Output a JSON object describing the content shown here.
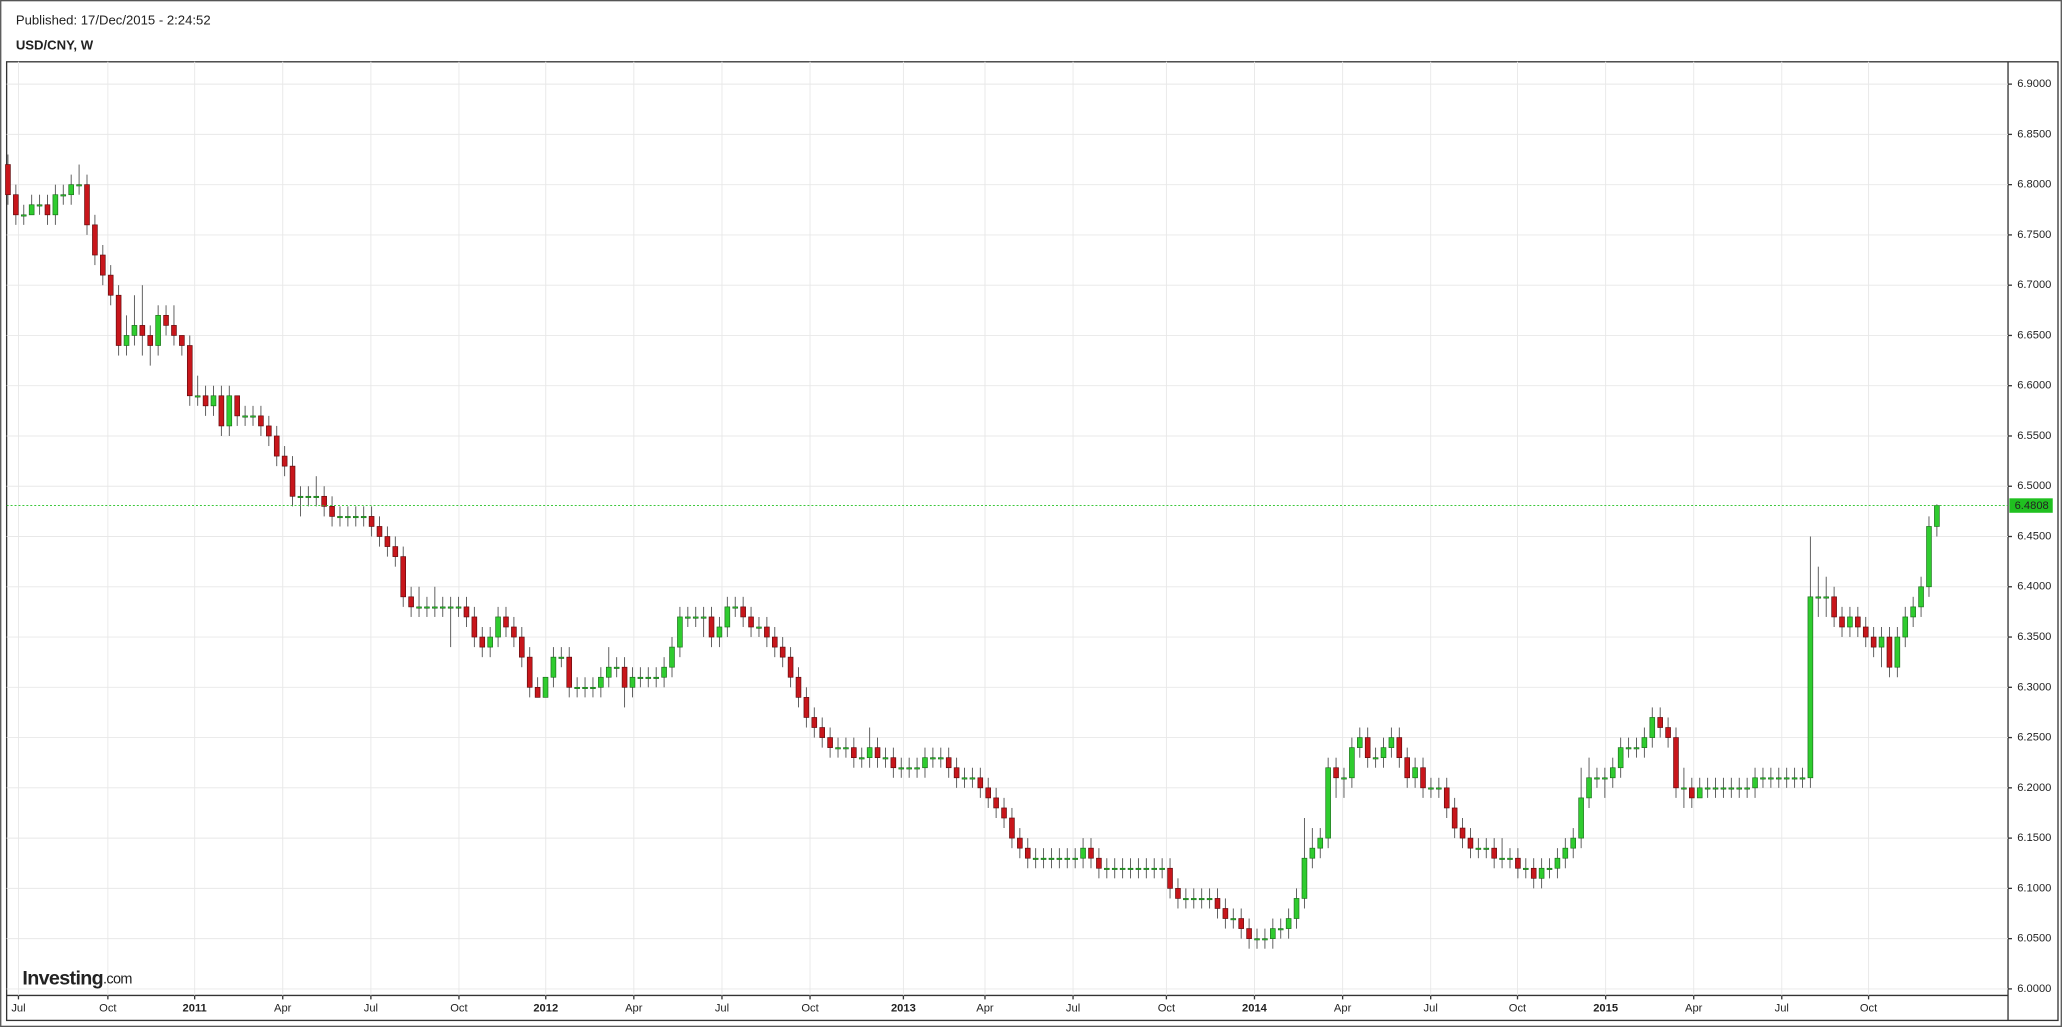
{
  "chart_data": {
    "type": "candlestick",
    "title": "USD/CNY, W",
    "subtitle": "Published: 17/Dec/2015 - 2:24:52",
    "watermark": {
      "text": "Investing",
      "suffix": ".com"
    },
    "up_color": "#2fcc2f",
    "down_color": "#c8161b",
    "last_color": "#20c020",
    "grid": true,
    "ylim": [
      5.9935,
      6.9222
    ],
    "yticks": [
      {
        "value": 6.0,
        "label": "6.0000"
      },
      {
        "value": 6.05,
        "label": "6.0500"
      },
      {
        "value": 6.1,
        "label": "6.1000"
      },
      {
        "value": 6.15,
        "label": "6.1500"
      },
      {
        "value": 6.2,
        "label": "6.2000"
      },
      {
        "value": 6.25,
        "label": "6.2500"
      },
      {
        "value": 6.3,
        "label": "6.3000"
      },
      {
        "value": 6.35,
        "label": "6.3500"
      },
      {
        "value": 6.4,
        "label": "6.4000"
      },
      {
        "value": 6.45,
        "label": "6.4500"
      },
      {
        "value": 6.5,
        "label": "6.5000"
      },
      {
        "value": 6.55,
        "label": "6.5500"
      },
      {
        "value": 6.6,
        "label": "6.6000"
      },
      {
        "value": 6.65,
        "label": "6.6500"
      },
      {
        "value": 6.7,
        "label": "6.7000"
      },
      {
        "value": 6.75,
        "label": "6.7500"
      },
      {
        "value": 6.8,
        "label": "6.8000"
      },
      {
        "value": 6.85,
        "label": "6.8500"
      },
      {
        "value": 6.9,
        "label": "6.9000"
      }
    ],
    "xlim": [
      -0.166,
      253.0
    ],
    "xticks": [
      {
        "value": 1.33,
        "label": "Jul"
      },
      {
        "value": 12.64,
        "label": "Oct"
      },
      {
        "value": 23.62,
        "label": "2011"
      },
      {
        "value": 34.76,
        "label": "Apr"
      },
      {
        "value": 45.91,
        "label": "Jul"
      },
      {
        "value": 57.05,
        "label": "Oct"
      },
      {
        "value": 68.03,
        "label": "2012"
      },
      {
        "value": 79.17,
        "label": "Apr"
      },
      {
        "value": 90.32,
        "label": "Jul"
      },
      {
        "value": 101.46,
        "label": "Oct"
      },
      {
        "value": 113.27,
        "label": "2013"
      },
      {
        "value": 123.59,
        "label": "Apr"
      },
      {
        "value": 134.73,
        "label": "Jul"
      },
      {
        "value": 146.54,
        "label": "Oct"
      },
      {
        "value": 157.68,
        "label": "2014"
      },
      {
        "value": 168.83,
        "label": "Apr"
      },
      {
        "value": 179.97,
        "label": "Jul"
      },
      {
        "value": 190.95,
        "label": "Oct"
      },
      {
        "value": 202.1,
        "label": "2015"
      },
      {
        "value": 213.24,
        "label": "Apr"
      },
      {
        "value": 224.38,
        "label": "Jul"
      },
      {
        "value": 235.36,
        "label": "Oct"
      }
    ],
    "open": [
      6.82,
      6.79,
      6.77,
      6.77,
      6.78,
      6.78,
      6.77,
      6.79,
      6.79,
      6.8,
      6.8,
      6.76,
      6.73,
      6.71,
      6.69,
      6.64,
      6.65,
      6.66,
      6.65,
      6.64,
      6.67,
      6.66,
      6.65,
      6.64,
      6.59,
      6.59,
      6.58,
      6.59,
      6.56,
      6.59,
      6.57,
      6.57,
      6.57,
      6.56,
      6.55,
      6.53,
      6.52,
      6.49,
      6.49,
      6.49,
      6.49,
      6.48,
      6.47,
      6.47,
      6.47,
      6.47,
      6.47,
      6.46,
      6.45,
      6.44,
      6.43,
      6.39,
      6.38,
      6.38,
      6.38,
      6.38,
      6.38,
      6.38,
      6.38,
      6.37,
      6.35,
      6.34,
      6.35,
      6.37,
      6.36,
      6.35,
      6.33,
      6.3,
      6.29,
      6.31,
      6.33,
      6.33,
      6.3,
      6.3,
      6.3,
      6.3,
      6.31,
      6.32,
      6.32,
      6.3,
      6.31,
      6.31,
      6.31,
      6.31,
      6.32,
      6.34,
      6.37,
      6.37,
      6.37,
      6.37,
      6.35,
      6.36,
      6.38,
      6.38,
      6.37,
      6.36,
      6.36,
      6.35,
      6.34,
      6.33,
      6.31,
      6.29,
      6.27,
      6.26,
      6.25,
      6.24,
      6.24,
      6.24,
      6.23,
      6.23,
      6.24,
      6.23,
      6.23,
      6.22,
      6.22,
      6.22,
      6.22,
      6.23,
      6.23,
      6.23,
      6.22,
      6.21,
      6.21,
      6.21,
      6.2,
      6.19,
      6.18,
      6.17,
      6.15,
      6.14,
      6.13,
      6.13,
      6.13,
      6.13,
      6.13,
      6.13,
      6.13,
      6.14,
      6.13,
      6.12,
      6.12,
      6.12,
      6.12,
      6.12,
      6.12,
      6.12,
      6.12,
      6.12,
      6.1,
      6.09,
      6.09,
      6.09,
      6.09,
      6.09,
      6.08,
      6.07,
      6.07,
      6.06,
      6.05,
      6.05,
      6.05,
      6.06,
      6.06,
      6.07,
      6.09,
      6.13,
      6.14,
      6.15,
      6.22,
      6.21,
      6.21,
      6.24,
      6.25,
      6.23,
      6.23,
      6.24,
      6.25,
      6.23,
      6.21,
      6.22,
      6.2,
      6.2,
      6.2,
      6.18,
      6.16,
      6.15,
      6.14,
      6.14,
      6.14,
      6.13,
      6.13,
      6.13,
      6.12,
      6.12,
      6.11,
      6.12,
      6.12,
      6.13,
      6.14,
      6.15,
      6.19,
      6.21,
      6.21,
      6.21,
      6.22,
      6.24,
      6.24,
      6.24,
      6.25,
      6.27,
      6.26,
      6.25,
      6.2,
      6.2,
      6.19,
      6.2,
      6.2,
      6.2,
      6.2,
      6.2,
      6.2,
      6.2,
      6.21,
      6.21,
      6.21,
      6.21,
      6.21,
      6.21,
      6.21,
      6.39,
      6.39,
      6.39,
      6.37,
      6.36,
      6.37,
      6.36,
      6.35,
      6.34,
      6.35,
      6.32,
      6.35,
      6.37,
      6.38,
      6.4,
      6.46
    ],
    "high": [
      6.83,
      6.8,
      6.78,
      6.79,
      6.79,
      6.79,
      6.8,
      6.8,
      6.81,
      6.82,
      6.81,
      6.77,
      6.74,
      6.72,
      6.7,
      6.67,
      6.69,
      6.7,
      6.66,
      6.68,
      6.68,
      6.68,
      6.65,
      6.65,
      6.61,
      6.6,
      6.6,
      6.6,
      6.6,
      6.59,
      6.58,
      6.58,
      6.58,
      6.57,
      6.56,
      6.54,
      6.53,
      6.5,
      6.5,
      6.51,
      6.5,
      6.49,
      6.48,
      6.48,
      6.48,
      6.48,
      6.48,
      6.47,
      6.46,
      6.45,
      6.44,
      6.4,
      6.4,
      6.39,
      6.4,
      6.39,
      6.39,
      6.39,
      6.39,
      6.38,
      6.36,
      6.36,
      6.38,
      6.38,
      6.37,
      6.36,
      6.34,
      6.31,
      6.31,
      6.34,
      6.34,
      6.34,
      6.31,
      6.31,
      6.31,
      6.32,
      6.34,
      6.33,
      6.33,
      6.32,
      6.32,
      6.32,
      6.32,
      6.33,
      6.35,
      6.38,
      6.38,
      6.38,
      6.38,
      6.38,
      6.37,
      6.39,
      6.39,
      6.39,
      6.38,
      6.37,
      6.37,
      6.36,
      6.35,
      6.34,
      6.32,
      6.3,
      6.28,
      6.27,
      6.26,
      6.25,
      6.25,
      6.25,
      6.24,
      6.26,
      6.25,
      6.24,
      6.24,
      6.23,
      6.23,
      6.23,
      6.24,
      6.24,
      6.24,
      6.24,
      6.23,
      6.22,
      6.22,
      6.22,
      6.21,
      6.2,
      6.19,
      6.18,
      6.16,
      6.15,
      6.14,
      6.14,
      6.14,
      6.14,
      6.14,
      6.14,
      6.15,
      6.15,
      6.14,
      6.13,
      6.13,
      6.13,
      6.13,
      6.13,
      6.13,
      6.13,
      6.13,
      6.13,
      6.11,
      6.1,
      6.1,
      6.1,
      6.1,
      6.1,
      6.09,
      6.08,
      6.08,
      6.07,
      6.06,
      6.06,
      6.07,
      6.07,
      6.08,
      6.1,
      6.17,
      6.16,
      6.16,
      6.23,
      6.23,
      6.22,
      6.25,
      6.26,
      6.26,
      6.24,
      6.25,
      6.26,
      6.26,
      6.24,
      6.23,
      6.23,
      6.21,
      6.21,
      6.21,
      6.19,
      6.17,
      6.16,
      6.15,
      6.15,
      6.15,
      6.15,
      6.14,
      6.14,
      6.13,
      6.13,
      6.13,
      6.13,
      6.14,
      6.15,
      6.16,
      6.22,
      6.23,
      6.22,
      6.22,
      6.23,
      6.25,
      6.25,
      6.25,
      6.26,
      6.28,
      6.28,
      6.27,
      6.26,
      6.22,
      6.21,
      6.21,
      6.21,
      6.21,
      6.21,
      6.21,
      6.21,
      6.21,
      6.22,
      6.22,
      6.22,
      6.22,
      6.22,
      6.22,
      6.22,
      6.45,
      6.42,
      6.41,
      6.4,
      6.38,
      6.38,
      6.38,
      6.37,
      6.36,
      6.36,
      6.36,
      6.36,
      6.38,
      6.39,
      6.41,
      6.47,
      6.482
    ],
    "low": [
      6.78,
      6.76,
      6.76,
      6.77,
      6.77,
      6.76,
      6.76,
      6.78,
      6.78,
      6.79,
      6.75,
      6.72,
      6.7,
      6.68,
      6.63,
      6.63,
      6.64,
      6.63,
      6.62,
      6.63,
      6.65,
      6.64,
      6.63,
      6.58,
      6.58,
      6.57,
      6.57,
      6.55,
      6.55,
      6.56,
      6.56,
      6.56,
      6.55,
      6.54,
      6.52,
      6.51,
      6.48,
      6.47,
      6.48,
      6.48,
      6.47,
      6.46,
      6.46,
      6.46,
      6.46,
      6.46,
      6.45,
      6.44,
      6.43,
      6.42,
      6.38,
      6.37,
      6.37,
      6.37,
      6.37,
      6.37,
      6.34,
      6.37,
      6.36,
      6.34,
      6.33,
      6.33,
      6.34,
      6.35,
      6.34,
      6.32,
      6.29,
      6.29,
      6.29,
      6.3,
      6.32,
      6.29,
      6.29,
      6.29,
      6.29,
      6.29,
      6.3,
      6.31,
      6.28,
      6.29,
      6.3,
      6.3,
      6.3,
      6.3,
      6.31,
      6.33,
      6.36,
      6.36,
      6.35,
      6.34,
      6.34,
      6.35,
      6.37,
      6.36,
      6.35,
      6.35,
      6.34,
      6.33,
      6.32,
      6.3,
      6.28,
      6.26,
      6.25,
      6.24,
      6.23,
      6.23,
      6.23,
      6.22,
      6.22,
      6.22,
      6.22,
      6.22,
      6.21,
      6.21,
      6.21,
      6.21,
      6.21,
      6.22,
      6.22,
      6.21,
      6.2,
      6.2,
      6.2,
      6.19,
      6.18,
      6.17,
      6.16,
      6.14,
      6.13,
      6.12,
      6.12,
      6.12,
      6.12,
      6.12,
      6.12,
      6.12,
      6.12,
      6.12,
      6.11,
      6.11,
      6.11,
      6.11,
      6.11,
      6.11,
      6.11,
      6.11,
      6.11,
      6.09,
      6.08,
      6.08,
      6.08,
      6.08,
      6.08,
      6.07,
      6.06,
      6.06,
      6.05,
      6.04,
      6.04,
      6.04,
      6.04,
      6.05,
      6.05,
      6.06,
      6.08,
      6.12,
      6.13,
      6.14,
      6.19,
      6.19,
      6.2,
      6.23,
      6.22,
      6.22,
      6.22,
      6.23,
      6.22,
      6.2,
      6.2,
      6.19,
      6.19,
      6.19,
      6.17,
      6.15,
      6.14,
      6.13,
      6.13,
      6.13,
      6.12,
      6.12,
      6.12,
      6.11,
      6.11,
      6.1,
      6.1,
      6.11,
      6.11,
      6.12,
      6.13,
      6.14,
      6.18,
      6.2,
      6.19,
      6.2,
      6.21,
      6.23,
      6.23,
      6.23,
      6.24,
      6.25,
      6.24,
      6.19,
      6.18,
      6.18,
      6.19,
      6.19,
      6.19,
      6.19,
      6.19,
      6.19,
      6.19,
      6.19,
      6.2,
      6.2,
      6.2,
      6.2,
      6.2,
      6.2,
      6.2,
      6.37,
      6.37,
      6.36,
      6.35,
      6.35,
      6.35,
      6.34,
      6.33,
      6.32,
      6.31,
      6.31,
      6.34,
      6.36,
      6.37,
      6.39,
      6.45
    ],
    "close": [
      6.79,
      6.77,
      6.77,
      6.78,
      6.78,
      6.77,
      6.79,
      6.79,
      6.8,
      6.8,
      6.76,
      6.73,
      6.71,
      6.69,
      6.64,
      6.65,
      6.66,
      6.65,
      6.64,
      6.67,
      6.66,
      6.65,
      6.64,
      6.59,
      6.59,
      6.58,
      6.59,
      6.56,
      6.59,
      6.57,
      6.57,
      6.57,
      6.56,
      6.55,
      6.53,
      6.52,
      6.49,
      6.49,
      6.49,
      6.49,
      6.48,
      6.47,
      6.47,
      6.47,
      6.47,
      6.47,
      6.46,
      6.45,
      6.44,
      6.43,
      6.39,
      6.38,
      6.38,
      6.38,
      6.38,
      6.38,
      6.38,
      6.38,
      6.37,
      6.35,
      6.34,
      6.35,
      6.37,
      6.36,
      6.35,
      6.33,
      6.3,
      6.29,
      6.31,
      6.33,
      6.33,
      6.3,
      6.3,
      6.3,
      6.3,
      6.31,
      6.32,
      6.32,
      6.3,
      6.31,
      6.31,
      6.31,
      6.31,
      6.32,
      6.34,
      6.37,
      6.37,
      6.37,
      6.37,
      6.35,
      6.36,
      6.38,
      6.38,
      6.37,
      6.36,
      6.36,
      6.35,
      6.34,
      6.33,
      6.31,
      6.29,
      6.27,
      6.26,
      6.25,
      6.24,
      6.24,
      6.24,
      6.23,
      6.23,
      6.24,
      6.23,
      6.23,
      6.22,
      6.22,
      6.22,
      6.22,
      6.23,
      6.23,
      6.23,
      6.22,
      6.21,
      6.21,
      6.21,
      6.2,
      6.19,
      6.18,
      6.17,
      6.15,
      6.14,
      6.13,
      6.13,
      6.13,
      6.13,
      6.13,
      6.13,
      6.13,
      6.14,
      6.13,
      6.12,
      6.12,
      6.12,
      6.12,
      6.12,
      6.12,
      6.12,
      6.12,
      6.12,
      6.1,
      6.09,
      6.09,
      6.09,
      6.09,
      6.09,
      6.08,
      6.07,
      6.07,
      6.06,
      6.05,
      6.05,
      6.05,
      6.06,
      6.06,
      6.07,
      6.09,
      6.13,
      6.14,
      6.15,
      6.22,
      6.21,
      6.21,
      6.24,
      6.25,
      6.23,
      6.23,
      6.24,
      6.25,
      6.23,
      6.21,
      6.22,
      6.2,
      6.2,
      6.2,
      6.18,
      6.16,
      6.15,
      6.14,
      6.14,
      6.14,
      6.13,
      6.13,
      6.13,
      6.12,
      6.12,
      6.11,
      6.12,
      6.12,
      6.13,
      6.14,
      6.15,
      6.19,
      6.21,
      6.21,
      6.21,
      6.22,
      6.24,
      6.24,
      6.24,
      6.25,
      6.27,
      6.26,
      6.25,
      6.2,
      6.2,
      6.19,
      6.2,
      6.2,
      6.2,
      6.2,
      6.2,
      6.2,
      6.2,
      6.21,
      6.21,
      6.21,
      6.21,
      6.21,
      6.21,
      6.21,
      6.39,
      6.39,
      6.39,
      6.37,
      6.36,
      6.37,
      6.36,
      6.35,
      6.34,
      6.35,
      6.32,
      6.35,
      6.37,
      6.38,
      6.4,
      6.46,
      6.4808
    ]
  }
}
